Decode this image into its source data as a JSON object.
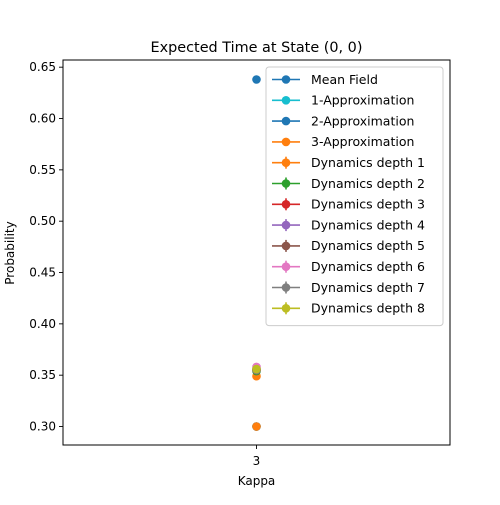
{
  "chart_data": {
    "type": "scatter",
    "title": "Expected Time at State (0, 0)",
    "xlabel": "Kappa",
    "ylabel": "Probability",
    "categories": [
      "3"
    ],
    "ylim": [
      0.282,
      0.657
    ],
    "yticks": [
      0.3,
      0.35,
      0.4,
      0.45,
      0.5,
      0.55,
      0.6,
      0.65
    ],
    "ytick_labels": [
      "0.30",
      "0.35",
      "0.40",
      "0.45",
      "0.50",
      "0.55",
      "0.60",
      "0.65"
    ],
    "grid": false,
    "legend_position": "top-right",
    "series": [
      {
        "name": "Mean Field",
        "color": "#1f77b4",
        "errorbar": false,
        "values": [
          0.638
        ]
      },
      {
        "name": "1-Approximation",
        "color": "#17becf",
        "errorbar": false,
        "values": [
          0.3
        ]
      },
      {
        "name": "2-Approximation",
        "color": "#1f77b4",
        "errorbar": false,
        "values": [
          0.3
        ]
      },
      {
        "name": "3-Approximation",
        "color": "#ff7f0e",
        "errorbar": false,
        "values": [
          0.3
        ]
      },
      {
        "name": "Dynamics depth 1",
        "color": "#ff7f0e",
        "errorbar": true,
        "values": [
          0.349
        ]
      },
      {
        "name": "Dynamics depth 2",
        "color": "#2ca02c",
        "errorbar": true,
        "values": [
          0.354
        ]
      },
      {
        "name": "Dynamics depth 3",
        "color": "#d62728",
        "errorbar": true,
        "values": [
          0.355
        ]
      },
      {
        "name": "Dynamics depth 4",
        "color": "#9467bd",
        "errorbar": true,
        "values": [
          0.356
        ]
      },
      {
        "name": "Dynamics depth 5",
        "color": "#8c564b",
        "errorbar": true,
        "values": [
          0.355
        ]
      },
      {
        "name": "Dynamics depth 6",
        "color": "#e377c2",
        "errorbar": true,
        "values": [
          0.358
        ]
      },
      {
        "name": "Dynamics depth 7",
        "color": "#7f7f7f",
        "errorbar": true,
        "values": [
          0.355
        ]
      },
      {
        "name": "Dynamics depth 8",
        "color": "#bcbd22",
        "errorbar": true,
        "values": [
          0.356
        ]
      }
    ]
  }
}
